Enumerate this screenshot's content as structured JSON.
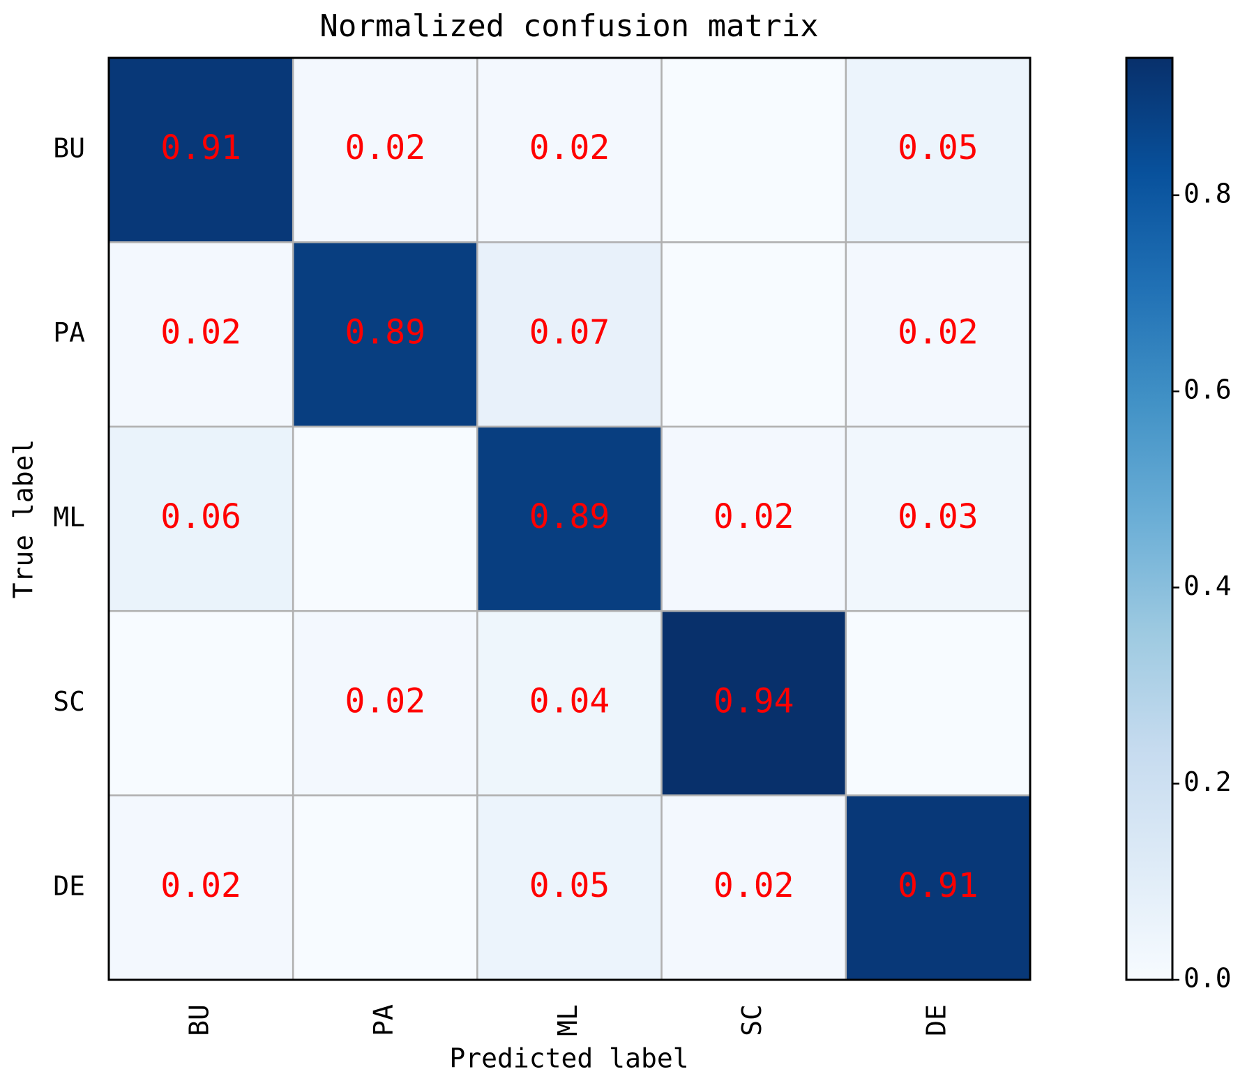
{
  "chart_data": {
    "type": "heatmap",
    "title": "Normalized confusion matrix",
    "x_label": "Predicted label",
    "y_label": "True label",
    "x_categories": [
      "BU",
      "PA",
      "ML",
      "SC",
      "DE"
    ],
    "y_categories": [
      "BU",
      "PA",
      "ML",
      "SC",
      "DE"
    ],
    "values": [
      [
        0.91,
        0.02,
        0.02,
        0,
        0.05
      ],
      [
        0.02,
        0.89,
        0.07,
        0,
        0.02
      ],
      [
        0.06,
        0,
        0.89,
        0.02,
        0.03
      ],
      [
        0,
        0.02,
        0.04,
        0.94,
        0
      ],
      [
        0.02,
        0,
        0.05,
        0.02,
        0.91
      ]
    ],
    "label_color": "#ff0000",
    "colormap": "Blues",
    "clim": [
      0,
      0.94
    ],
    "cticks": [
      {
        "value": 0,
        "label": "0.0"
      },
      0.2,
      0.4,
      0.6,
      0.8
    ]
  }
}
